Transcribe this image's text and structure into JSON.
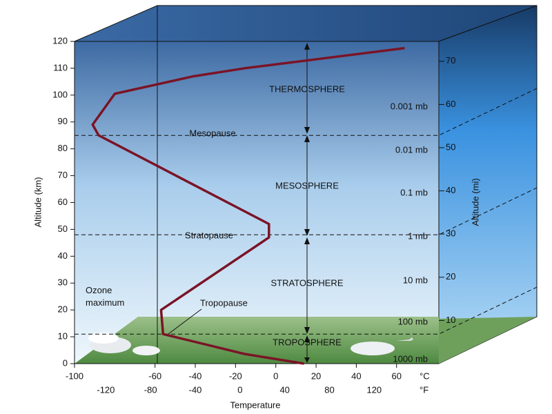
{
  "chart_data": {
    "type": "line",
    "x_label": "Temperature",
    "y_label": "Altitude (km)",
    "y2_label": "Altitude (mi)",
    "x_unit": "°C",
    "x2_unit": "°F",
    "x": [
      14,
      -15.5,
      -56,
      -57,
      -3.4,
      -3.4,
      -88,
      -91,
      -80,
      -41,
      -15.5,
      64
    ],
    "values": [
      0,
      3.6,
      11,
      20,
      47,
      52,
      85,
      89,
      100.5,
      107,
      110,
      117.5
    ],
    "color": "#7a1426",
    "xlim": [
      -100,
      81
    ],
    "xticks": [
      -100,
      -60,
      -40,
      -20,
      0,
      20,
      40,
      60
    ],
    "x2lim": [
      -148,
      177.8
    ],
    "x2ticks": [
      -120,
      -80,
      -40,
      0,
      40,
      80,
      120
    ],
    "ylim": [
      0,
      120
    ],
    "yticks": [
      0,
      10,
      20,
      30,
      40,
      50,
      60,
      70,
      80,
      90,
      100,
      110,
      120
    ],
    "y2lim": [
      0,
      74.6
    ],
    "y2ticks": [
      10,
      20,
      30,
      40,
      50,
      60,
      70
    ],
    "boundaries": [
      {
        "label": "Mesopause",
        "altitude": 85
      },
      {
        "label": "Stratopause",
        "altitude": 48
      },
      {
        "label": "Tropopause",
        "altitude": 11
      }
    ],
    "layers": [
      "THERMOSPHERE",
      "MESOSPHERE",
      "STRATOSPHERE",
      "TROPOSPHERE"
    ],
    "pressure_labels": [
      "0.001 mb",
      "0.01 mb",
      "0.1 mb",
      "1 mb",
      "10 mb",
      "100 mb",
      "1000 mb"
    ],
    "annotations": [
      "Ozone\nmaximum"
    ]
  }
}
